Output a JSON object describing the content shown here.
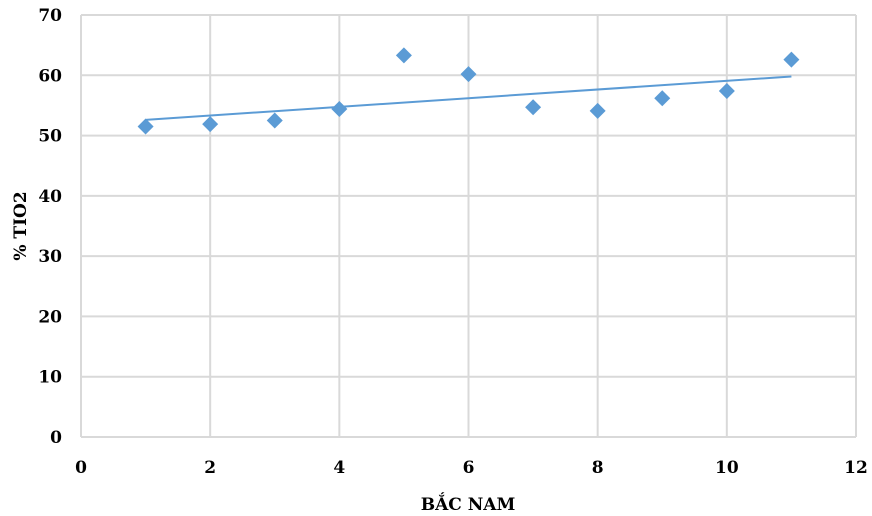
{
  "chart_data": {
    "type": "scatter",
    "xlabel": "BẮC NAM",
    "ylabel": "% TIO2",
    "xlim": [
      0,
      12
    ],
    "ylim": [
      0,
      70
    ],
    "x_ticks": [
      0,
      2,
      4,
      6,
      8,
      10,
      12
    ],
    "y_ticks": [
      0,
      10,
      20,
      30,
      40,
      50,
      60,
      70
    ],
    "grid": true,
    "legend": "none",
    "series": [
      {
        "marker": "diamond",
        "color": "#5b9bd5",
        "points": [
          {
            "x": 1,
            "y": 51.5
          },
          {
            "x": 2,
            "y": 51.9
          },
          {
            "x": 3,
            "y": 52.5
          },
          {
            "x": 4,
            "y": 54.4
          },
          {
            "x": 5,
            "y": 63.3
          },
          {
            "x": 6,
            "y": 60.2
          },
          {
            "x": 7,
            "y": 54.7
          },
          {
            "x": 8,
            "y": 54.1
          },
          {
            "x": 9,
            "y": 56.2
          },
          {
            "x": 10,
            "y": 57.4
          },
          {
            "x": 11,
            "y": 62.6
          }
        ]
      }
    ],
    "trendline": {
      "type": "linear",
      "color": "#5b9bd5",
      "x_range": [
        1,
        11
      ],
      "y_start": 52.6,
      "y_end": 59.8
    }
  }
}
